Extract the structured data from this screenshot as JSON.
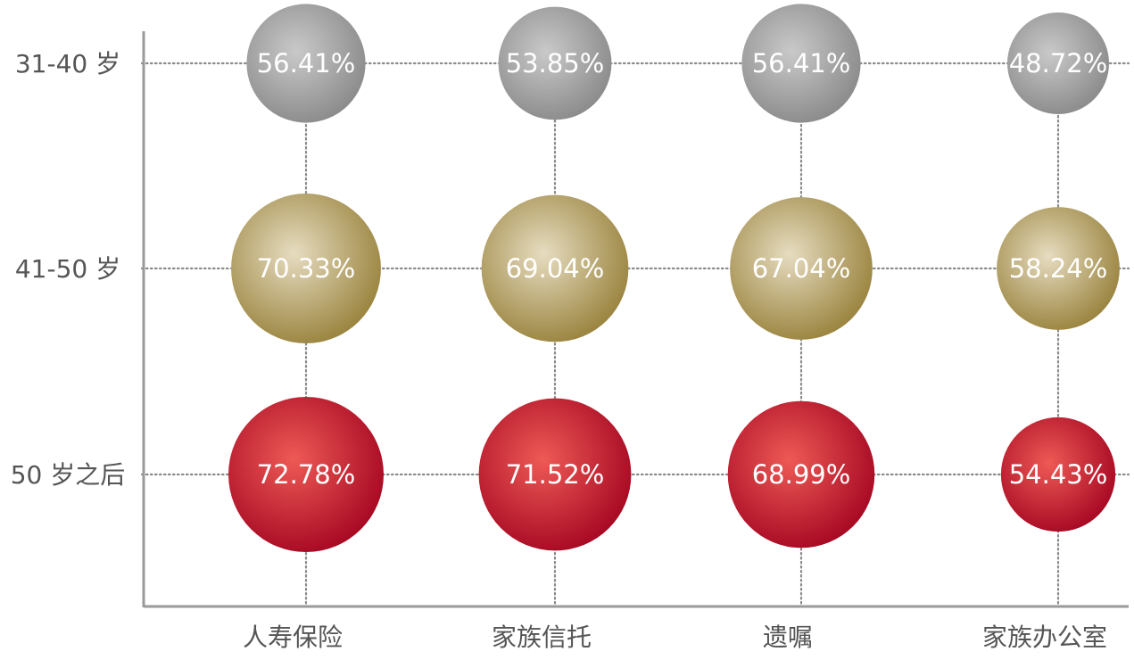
{
  "chart_data": {
    "type": "bubble",
    "title": "",
    "rows": [
      "31-40 岁",
      "41-50 岁",
      "50 岁之后"
    ],
    "columns": [
      "人寿保险",
      "家族信托",
      "遗嘱",
      "家族办公室"
    ],
    "series": [
      {
        "name": "31-40 岁",
        "values": [
          56.41,
          53.85,
          56.41,
          48.72
        ],
        "labels": [
          "56.41%",
          "53.85%",
          "56.41%",
          "48.72%"
        ]
      },
      {
        "name": "41-50 岁",
        "values": [
          70.33,
          69.04,
          67.04,
          58.24
        ],
        "labels": [
          "70.33%",
          "69.04%",
          "67.04%",
          "58.24%"
        ]
      },
      {
        "name": "50 岁之后",
        "values": [
          72.78,
          71.52,
          68.99,
          54.43
        ],
        "labels": [
          "72.78%",
          "71.52%",
          "68.99%",
          "54.43%"
        ]
      }
    ],
    "colors": {
      "31-40 岁": [
        "#c9c9c9",
        "#8c8c8c"
      ],
      "41-50 岁": [
        "#e6dcc0",
        "#9b8540"
      ],
      "50 岁之后": [
        "#ee5a55",
        "#a80a24"
      ]
    },
    "grid": "dotted",
    "legend": "none"
  }
}
